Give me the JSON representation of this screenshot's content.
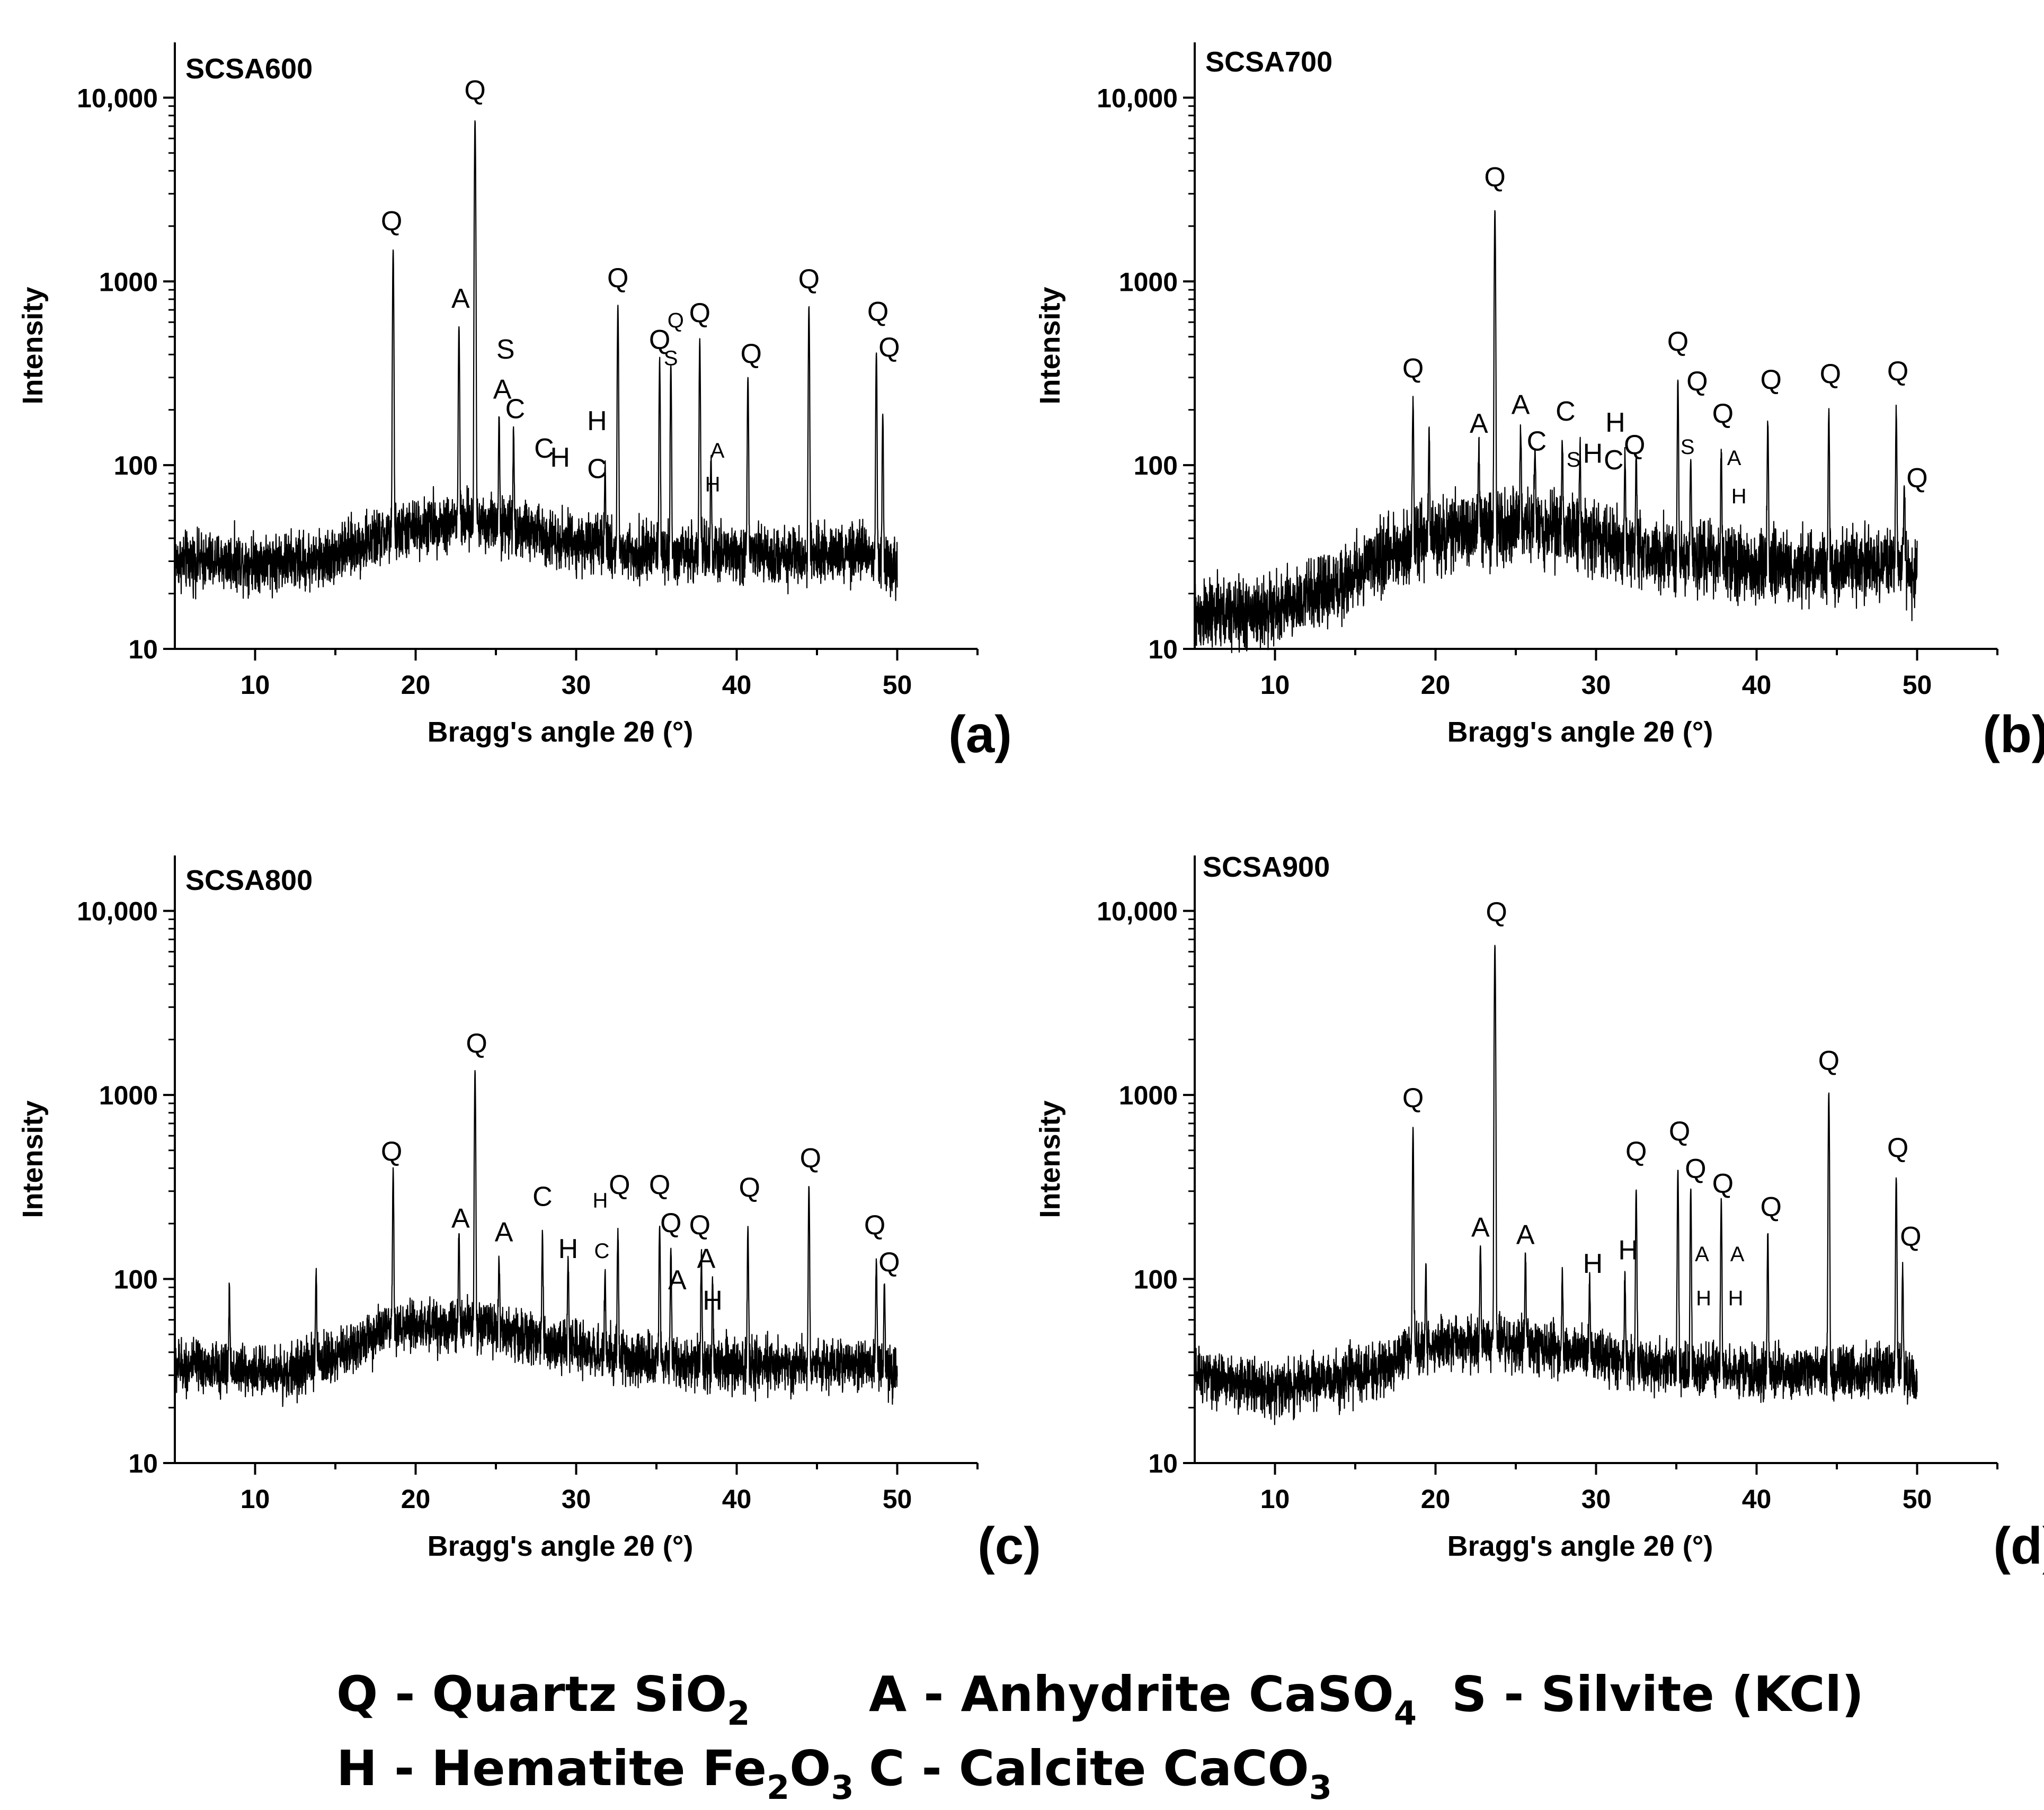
{
  "chart_data": [
    {
      "type": "line",
      "id": "a",
      "title": "SCSA600",
      "panel_label": "(a)",
      "xlabel": "Bragg's angle 2θ (°)",
      "ylabel": "Intensity",
      "xlim": [
        5,
        55
      ],
      "ylim": [
        10,
        20000
      ],
      "yscale": "log",
      "xticks": [
        10,
        20,
        30,
        40,
        50
      ],
      "yticks": [
        {
          "v": 10,
          "t": "10"
        },
        {
          "v": 100,
          "t": "100"
        },
        {
          "v": 1000,
          "t": "1000"
        },
        {
          "v": 10000,
          "t": "10,000"
        }
      ],
      "background": [
        [
          5,
          30
        ],
        [
          14,
          30
        ],
        [
          18.5,
          42
        ],
        [
          21,
          48
        ],
        [
          24,
          50
        ],
        [
          27,
          44
        ],
        [
          30,
          38
        ],
        [
          33,
          34
        ],
        [
          38,
          33
        ],
        [
          44,
          32
        ],
        [
          48,
          33
        ],
        [
          50,
          28
        ]
      ],
      "noise": 0.24,
      "peaks": [
        [
          18.6,
          1450
        ],
        [
          22.7,
          520
        ],
        [
          23.7,
          7500
        ],
        [
          25.2,
          140
        ],
        [
          26.1,
          110
        ],
        [
          31.8,
          65
        ],
        [
          32.6,
          700
        ],
        [
          35.2,
          340
        ],
        [
          35.9,
          310
        ],
        [
          37.7,
          440
        ],
        [
          38.4,
          70
        ],
        [
          40.7,
          270
        ],
        [
          44.5,
          700
        ],
        [
          48.7,
          380
        ],
        [
          49.1,
          160
        ]
      ],
      "annotations": [
        {
          "text": "Q",
          "x": 18.5,
          "y": 1900
        },
        {
          "text": "A",
          "x": 22.8,
          "y": 720
        },
        {
          "text": "Q",
          "x": 23.7,
          "y": 9800
        },
        {
          "text": "S",
          "x": 25.6,
          "y": 380
        },
        {
          "text": "A",
          "x": 25.4,
          "y": 230
        },
        {
          "text": "C",
          "x": 26.2,
          "y": 180
        },
        {
          "text": "C",
          "x": 28.0,
          "y": 110
        },
        {
          "text": "H",
          "x": 29.0,
          "y": 98
        },
        {
          "text": "H",
          "x": 31.3,
          "y": 155
        },
        {
          "text": "C",
          "x": 31.3,
          "y": 85
        },
        {
          "text": "Q",
          "x": 32.6,
          "y": 930
        },
        {
          "text": "Q",
          "x": 35.2,
          "y": 430
        },
        {
          "text": "Q",
          "x": 36.2,
          "y": 560,
          "small": true
        },
        {
          "text": "S",
          "x": 35.9,
          "y": 350,
          "small": true
        },
        {
          "text": "Q",
          "x": 37.7,
          "y": 600
        },
        {
          "text": "A",
          "x": 38.8,
          "y": 110,
          "small": true
        },
        {
          "text": "H",
          "x": 38.5,
          "y": 72,
          "small": true
        },
        {
          "text": "Q",
          "x": 40.9,
          "y": 360
        },
        {
          "text": "Q",
          "x": 44.5,
          "y": 920
        },
        {
          "text": "Q",
          "x": 48.8,
          "y": 610
        },
        {
          "text": "Q",
          "x": 49.5,
          "y": 390
        }
      ]
    },
    {
      "type": "line",
      "id": "b",
      "title": "SCSA700",
      "panel_label": "(b)",
      "xlabel": "Bragg's angle 2θ (°)",
      "ylabel": "Intensity",
      "xlim": [
        5,
        55
      ],
      "ylim": [
        10,
        20000
      ],
      "yscale": "log",
      "xticks": [
        10,
        20,
        30,
        40,
        50
      ],
      "yticks": [
        {
          "v": 10,
          "t": "10"
        },
        {
          "v": 100,
          "t": "100"
        },
        {
          "v": 1000,
          "t": "1000"
        },
        {
          "v": 10000,
          "t": "10,000"
        }
      ],
      "background": [
        [
          5,
          15
        ],
        [
          10,
          16
        ],
        [
          14,
          22
        ],
        [
          18,
          36
        ],
        [
          21,
          43
        ],
        [
          25,
          48
        ],
        [
          28,
          45
        ],
        [
          31,
          38
        ],
        [
          34,
          32
        ],
        [
          40,
          28
        ],
        [
          46,
          28
        ],
        [
          49,
          30
        ],
        [
          50,
          24
        ]
      ],
      "noise": 0.3,
      "peaks": [
        [
          18.6,
          190
        ],
        [
          19.6,
          110
        ],
        [
          22.7,
          85
        ],
        [
          23.7,
          2400
        ],
        [
          25.3,
          110
        ],
        [
          26.2,
          80
        ],
        [
          27.9,
          95
        ],
        [
          29.0,
          85
        ],
        [
          31.8,
          80
        ],
        [
          32.5,
          85
        ],
        [
          35.1,
          260
        ],
        [
          35.9,
          80
        ],
        [
          37.8,
          90
        ],
        [
          40.7,
          145
        ],
        [
          44.5,
          165
        ],
        [
          48.7,
          170
        ],
        [
          49.2,
          45
        ]
      ],
      "annotations": [
        {
          "text": "Q",
          "x": 18.6,
          "y": 300
        },
        {
          "text": "Q",
          "x": 23.7,
          "y": 3300
        },
        {
          "text": "A",
          "x": 22.7,
          "y": 150
        },
        {
          "text": "A",
          "x": 25.3,
          "y": 190
        },
        {
          "text": "C",
          "x": 26.3,
          "y": 120
        },
        {
          "text": "C",
          "x": 28.1,
          "y": 175
        },
        {
          "text": "S",
          "x": 28.6,
          "y": 98,
          "small": true
        },
        {
          "text": "H",
          "x": 29.8,
          "y": 103
        },
        {
          "text": "H",
          "x": 31.2,
          "y": 152
        },
        {
          "text": "C",
          "x": 31.1,
          "y": 95
        },
        {
          "text": "Q",
          "x": 32.4,
          "y": 115
        },
        {
          "text": "Q",
          "x": 35.1,
          "y": 420
        },
        {
          "text": "Q",
          "x": 36.3,
          "y": 255
        },
        {
          "text": "S",
          "x": 35.7,
          "y": 115,
          "small": true
        },
        {
          "text": "Q",
          "x": 37.9,
          "y": 170
        },
        {
          "text": "A",
          "x": 38.6,
          "y": 100,
          "small": true
        },
        {
          "text": "H",
          "x": 38.9,
          "y": 62,
          "small": true
        },
        {
          "text": "Q",
          "x": 40.9,
          "y": 260
        },
        {
          "text": "Q",
          "x": 44.6,
          "y": 280
        },
        {
          "text": "Q",
          "x": 48.8,
          "y": 290
        },
        {
          "text": "Q",
          "x": 50.0,
          "y": 76
        }
      ]
    },
    {
      "type": "line",
      "id": "c",
      "title": "SCSA800",
      "panel_label": "(c)",
      "xlabel": "Bragg's angle 2θ (°)",
      "ylabel": "Intensity",
      "xlim": [
        5,
        55
      ],
      "ylim": [
        10,
        20000
      ],
      "yscale": "log",
      "xticks": [
        10,
        20,
        30,
        40,
        50
      ],
      "yticks": [
        {
          "v": 10,
          "t": "10"
        },
        {
          "v": 100,
          "t": "100"
        },
        {
          "v": 1000,
          "t": "1000"
        },
        {
          "v": 10000,
          "t": "10,000"
        }
      ],
      "background": [
        [
          5,
          34
        ],
        [
          12,
          31
        ],
        [
          15,
          38
        ],
        [
          18,
          52
        ],
        [
          21,
          56
        ],
        [
          24,
          56
        ],
        [
          27,
          48
        ],
        [
          30,
          42
        ],
        [
          34,
          36
        ],
        [
          40,
          34
        ],
        [
          46,
          34
        ],
        [
          49,
          35
        ],
        [
          50,
          30
        ]
      ],
      "noise": 0.22,
      "peaks": [
        [
          8.4,
          55
        ],
        [
          13.8,
          75
        ],
        [
          18.6,
          330
        ],
        [
          22.7,
          120
        ],
        [
          23.7,
          1300
        ],
        [
          25.2,
          80
        ],
        [
          27.9,
          130
        ],
        [
          29.5,
          85
        ],
        [
          31.8,
          75
        ],
        [
          32.6,
          145
        ],
        [
          35.2,
          160
        ],
        [
          35.9,
          110
        ],
        [
          37.8,
          100
        ],
        [
          38.5,
          70
        ],
        [
          40.7,
          160
        ],
        [
          44.5,
          290
        ],
        [
          48.7,
          95
        ],
        [
          49.2,
          60
        ]
      ],
      "annotations": [
        {
          "text": "Q",
          "x": 18.5,
          "y": 440
        },
        {
          "text": "A",
          "x": 22.8,
          "y": 190
        },
        {
          "text": "Q",
          "x": 23.8,
          "y": 1700
        },
        {
          "text": "A",
          "x": 25.5,
          "y": 160
        },
        {
          "text": "C",
          "x": 27.9,
          "y": 250
        },
        {
          "text": "H",
          "x": 29.5,
          "y": 130
        },
        {
          "text": "H",
          "x": 31.5,
          "y": 245,
          "small": true
        },
        {
          "text": "C",
          "x": 31.6,
          "y": 130,
          "small": true
        },
        {
          "text": "Q",
          "x": 32.7,
          "y": 290
        },
        {
          "text": "Q",
          "x": 35.2,
          "y": 290
        },
        {
          "text": "Q",
          "x": 35.9,
          "y": 180
        },
        {
          "text": "A",
          "x": 36.3,
          "y": 88
        },
        {
          "text": "Q",
          "x": 37.7,
          "y": 175
        },
        {
          "text": "A",
          "x": 38.1,
          "y": 115
        },
        {
          "text": "H",
          "x": 38.5,
          "y": 68
        },
        {
          "text": "Q",
          "x": 40.8,
          "y": 280
        },
        {
          "text": "Q",
          "x": 44.6,
          "y": 405
        },
        {
          "text": "Q",
          "x": 48.6,
          "y": 175
        },
        {
          "text": "Q",
          "x": 49.5,
          "y": 110
        }
      ]
    },
    {
      "type": "line",
      "id": "d",
      "title": "SCSA900",
      "panel_label": "(d)",
      "xlabel": "Bragg's angle 2θ (°)",
      "ylabel": "Intensity",
      "xlim": [
        5,
        55
      ],
      "ylim": [
        10,
        20000
      ],
      "yscale": "log",
      "xticks": [
        10,
        20,
        30,
        40,
        50
      ],
      "yticks": [
        {
          "v": 10,
          "t": "10"
        },
        {
          "v": 100,
          "t": "100"
        },
        {
          "v": 1000,
          "t": "1000"
        },
        {
          "v": 10000,
          "t": "10,000"
        }
      ],
      "background": [
        [
          5,
          30
        ],
        [
          10,
          25
        ],
        [
          14,
          29
        ],
        [
          17,
          33
        ],
        [
          18.5,
          42
        ],
        [
          21,
          45
        ],
        [
          25,
          44
        ],
        [
          29,
          40
        ],
        [
          33,
          34
        ],
        [
          40,
          31
        ],
        [
          46,
          31
        ],
        [
          49,
          32
        ],
        [
          50,
          26
        ]
      ],
      "noise": 0.22,
      "peaks": [
        [
          18.6,
          620
        ],
        [
          19.4,
          75
        ],
        [
          22.8,
          110
        ],
        [
          23.7,
          6500
        ],
        [
          25.6,
          90
        ],
        [
          27.9,
          70
        ],
        [
          29.6,
          65
        ],
        [
          31.8,
          70
        ],
        [
          32.5,
          280
        ],
        [
          35.1,
          360
        ],
        [
          35.9,
          280
        ],
        [
          37.8,
          240
        ],
        [
          40.7,
          150
        ],
        [
          44.5,
          1000
        ],
        [
          48.7,
          330
        ],
        [
          49.1,
          85
        ]
      ],
      "annotations": [
        {
          "text": "Q",
          "x": 18.6,
          "y": 860
        },
        {
          "text": "Q",
          "x": 23.8,
          "y": 8800
        },
        {
          "text": "A",
          "x": 22.8,
          "y": 170
        },
        {
          "text": "A",
          "x": 25.6,
          "y": 155
        },
        {
          "text": "H",
          "x": 29.8,
          "y": 108
        },
        {
          "text": "H",
          "x": 32.0,
          "y": 128
        },
        {
          "text": "Q",
          "x": 32.5,
          "y": 440
        },
        {
          "text": "Q",
          "x": 35.2,
          "y": 565
        },
        {
          "text": "Q",
          "x": 36.2,
          "y": 355
        },
        {
          "text": "Q",
          "x": 37.9,
          "y": 295
        },
        {
          "text": "A",
          "x": 36.6,
          "y": 125,
          "small": true
        },
        {
          "text": "H",
          "x": 36.7,
          "y": 72,
          "small": true
        },
        {
          "text": "A",
          "x": 38.8,
          "y": 125,
          "small": true
        },
        {
          "text": "H",
          "x": 38.7,
          "y": 72,
          "small": true
        },
        {
          "text": "Q",
          "x": 40.9,
          "y": 220
        },
        {
          "text": "Q",
          "x": 44.5,
          "y": 1370
        },
        {
          "text": "Q",
          "x": 48.8,
          "y": 460
        },
        {
          "text": "Q",
          "x": 49.6,
          "y": 152
        }
      ]
    }
  ],
  "legend": {
    "items": [
      {
        "prefix": "Q - Quartz Si",
        "formula": [
          [
            "O",
            false
          ],
          [
            "2",
            true
          ]
        ]
      },
      {
        "prefix": "A - Anhydrite CaS",
        "formula": [
          [
            "O",
            false
          ],
          [
            "4",
            true
          ]
        ]
      },
      {
        "prefix": "S - Silvite (KCl)",
        "formula": []
      },
      {
        "prefix": "H - Hematite Fe",
        "formula": [
          [
            "2",
            true
          ],
          [
            "O",
            false
          ],
          [
            "3",
            true
          ]
        ]
      },
      {
        "prefix": "C - Calcite CaC",
        "formula": [
          [
            "O",
            false
          ],
          [
            "3",
            true
          ]
        ]
      }
    ]
  }
}
